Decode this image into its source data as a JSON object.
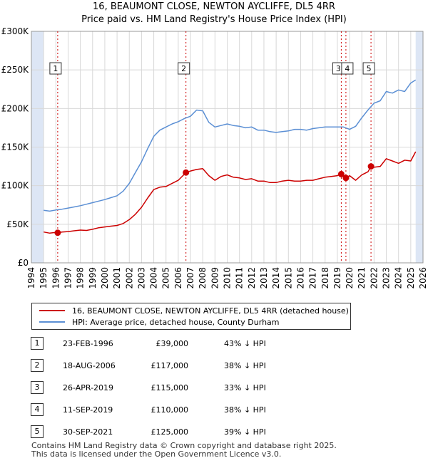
{
  "header": {
    "title": "16, BEAUMONT CLOSE, NEWTON AYCLIFFE, DL5 4RR",
    "subtitle": "Price paid vs. HM Land Registry's House Price Index (HPI)"
  },
  "colors": {
    "property": "#cc0000",
    "hpi": "#5b8fd4",
    "shade": "#dde6f5",
    "grid": "#d8d8d8",
    "marker_line": "#cc0000"
  },
  "chart_data": {
    "type": "line",
    "title": "Price paid vs. HM Land Registry's House Price Index (HPI)",
    "xlabel": "",
    "ylabel": "",
    "xlim": [
      1994,
      2026
    ],
    "ylim": [
      0,
      300000
    ],
    "y_ticks": [
      0,
      50000,
      100000,
      150000,
      200000,
      250000,
      300000
    ],
    "y_tick_labels": [
      "£0",
      "£50K",
      "£100K",
      "£150K",
      "£200K",
      "£250K",
      "£300K"
    ],
    "x_ticks": [
      1994,
      1995,
      1996,
      1997,
      1998,
      1999,
      2000,
      2001,
      2002,
      2003,
      2004,
      2005,
      2006,
      2007,
      2008,
      2009,
      2010,
      2011,
      2012,
      2013,
      2014,
      2015,
      2016,
      2017,
      2018,
      2019,
      2020,
      2021,
      2022,
      2023,
      2024,
      2025,
      2026
    ],
    "x_tick_labels": [
      "1994",
      "1995",
      "1996",
      "1997",
      "1998",
      "1999",
      "2000",
      "2001",
      "2002",
      "2003",
      "2004",
      "2005",
      "2006",
      "2007",
      "2008",
      "2009",
      "2010",
      "2011",
      "2012",
      "2013",
      "2014",
      "2015",
      "2016",
      "2017",
      "2018",
      "2019",
      "2020",
      "2021",
      "2022",
      "2023",
      "2024",
      "2025",
      "2026"
    ],
    "data_range": [
      1995.0,
      2025.4
    ],
    "grid": true,
    "series": [
      {
        "name": "16, BEAUMONT CLOSE, NEWTON AYCLIFFE, DL5 4RR (detached house)",
        "color": "#cc0000",
        "x": [
          1995.0,
          1995.5,
          1996.0,
          1996.15,
          1996.5,
          1997.0,
          1997.5,
          1998.0,
          1998.5,
          1999.0,
          1999.5,
          2000.0,
          2000.5,
          2001.0,
          2001.5,
          2002.0,
          2002.5,
          2003.0,
          2003.5,
          2004.0,
          2004.5,
          2005.0,
          2005.5,
          2006.0,
          2006.63,
          2007.0,
          2007.5,
          2008.0,
          2008.5,
          2009.0,
          2009.5,
          2010.0,
          2010.5,
          2011.0,
          2011.5,
          2012.0,
          2012.5,
          2013.0,
          2013.5,
          2014.0,
          2014.5,
          2015.0,
          2015.5,
          2016.0,
          2016.5,
          2017.0,
          2017.5,
          2018.0,
          2018.5,
          2019.0,
          2019.32,
          2019.5,
          2019.7,
          2020.0,
          2020.5,
          2021.0,
          2021.5,
          2021.75,
          2022.0,
          2022.5,
          2023.0,
          2023.5,
          2024.0,
          2024.5,
          2025.0,
          2025.4
        ],
        "values": [
          40000,
          38500,
          39500,
          39000,
          40000,
          40500,
          41500,
          42500,
          42000,
          43500,
          45500,
          46500,
          47500,
          48500,
          51000,
          56000,
          63000,
          72000,
          84000,
          95000,
          98000,
          99000,
          103000,
          107000,
          117000,
          119000,
          121000,
          122000,
          113000,
          107000,
          112000,
          114000,
          111000,
          110000,
          108000,
          109000,
          106000,
          106000,
          104000,
          104000,
          106000,
          107000,
          106000,
          106000,
          107000,
          107000,
          109000,
          111000,
          112000,
          113000,
          115000,
          114000,
          110000,
          113000,
          107000,
          114000,
          118000,
          125000,
          124000,
          125000,
          135000,
          132000,
          129000,
          133000,
          132000,
          144000
        ]
      },
      {
        "name": "HPI: Average price, detached house, County Durham",
        "color": "#5b8fd4",
        "x": [
          1995.0,
          1995.5,
          1996.0,
          1996.5,
          1997.0,
          1997.5,
          1998.0,
          1998.5,
          1999.0,
          1999.5,
          2000.0,
          2000.5,
          2001.0,
          2001.5,
          2002.0,
          2002.5,
          2003.0,
          2003.5,
          2004.0,
          2004.5,
          2005.0,
          2005.5,
          2006.0,
          2006.5,
          2007.0,
          2007.5,
          2008.0,
          2008.5,
          2009.0,
          2009.5,
          2010.0,
          2010.5,
          2011.0,
          2011.5,
          2012.0,
          2012.5,
          2013.0,
          2013.5,
          2014.0,
          2014.5,
          2015.0,
          2015.5,
          2016.0,
          2016.5,
          2017.0,
          2017.5,
          2018.0,
          2018.5,
          2019.0,
          2019.5,
          2020.0,
          2020.5,
          2021.0,
          2021.5,
          2022.0,
          2022.5,
          2023.0,
          2023.5,
          2024.0,
          2024.5,
          2025.0,
          2025.4
        ],
        "values": [
          68000,
          67000,
          68500,
          69500,
          71000,
          72500,
          74000,
          76000,
          78000,
          80000,
          82000,
          84500,
          87000,
          93000,
          103000,
          117000,
          131000,
          148000,
          164000,
          172000,
          176000,
          180000,
          183000,
          187000,
          190000,
          198000,
          197000,
          182000,
          176000,
          178000,
          180000,
          178000,
          177000,
          175000,
          176000,
          172000,
          172000,
          170000,
          169000,
          170000,
          171000,
          173000,
          173000,
          172000,
          174000,
          175000,
          176000,
          176000,
          176000,
          176000,
          173000,
          177000,
          188000,
          198000,
          207000,
          210000,
          222000,
          220000,
          224000,
          222000,
          233000,
          237000
        ]
      }
    ],
    "sale_markers": [
      {
        "label": "1",
        "x": 1996.15,
        "value": 39000
      },
      {
        "label": "2",
        "x": 2006.63,
        "value": 117000
      },
      {
        "label": "3",
        "x": 2019.32,
        "value": 115000
      },
      {
        "label": "4",
        "x": 2019.7,
        "value": 110000
      },
      {
        "label": "5",
        "x": 2021.75,
        "value": 125000
      }
    ],
    "marker_box_value": 252000
  },
  "legend": {
    "property_label": "16, BEAUMONT CLOSE, NEWTON AYCLIFFE, DL5 4RR (detached house)",
    "hpi_label": "HPI: Average price, detached house, County Durham"
  },
  "sales": [
    {
      "num": "1",
      "date": "23-FEB-1996",
      "price": "£39,000",
      "hpi": "43% ↓ HPI"
    },
    {
      "num": "2",
      "date": "18-AUG-2006",
      "price": "£117,000",
      "hpi": "38% ↓ HPI"
    },
    {
      "num": "3",
      "date": "26-APR-2019",
      "price": "£115,000",
      "hpi": "33% ↓ HPI"
    },
    {
      "num": "4",
      "date": "11-SEP-2019",
      "price": "£110,000",
      "hpi": "38% ↓ HPI"
    },
    {
      "num": "5",
      "date": "30-SEP-2021",
      "price": "£125,000",
      "hpi": "39% ↓ HPI"
    }
  ],
  "footer": {
    "line1": "Contains HM Land Registry data © Crown copyright and database right 2025.",
    "line2": "This data is licensed under the Open Government Licence v3.0."
  }
}
